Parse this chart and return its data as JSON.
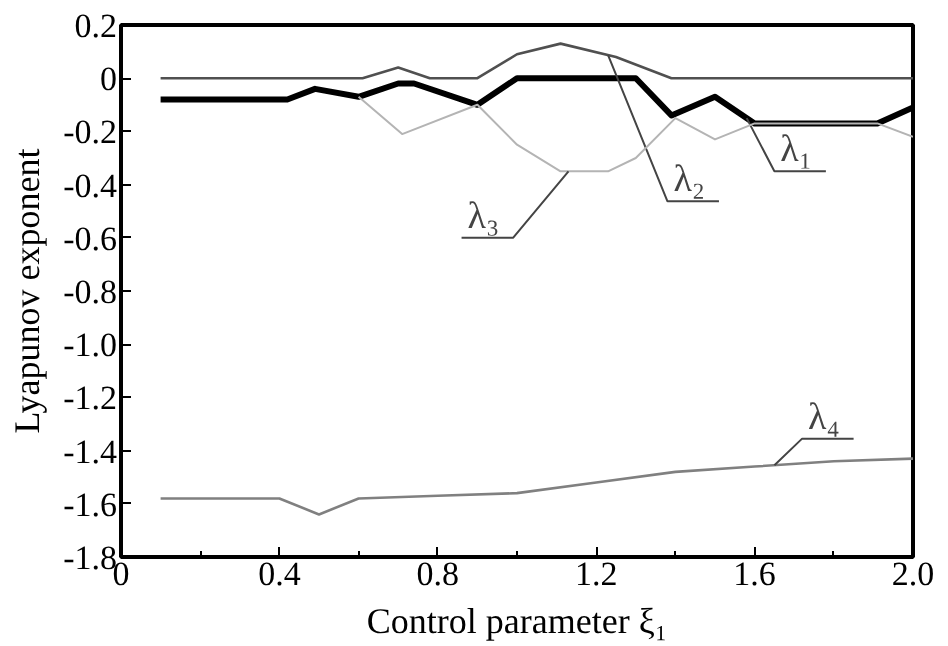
{
  "chart_data": {
    "type": "line",
    "xlabel": "Control parameter ξ₁",
    "ylabel": "Lyapunov exponent",
    "xlim": [
      0,
      2.0
    ],
    "ylim": [
      -1.8,
      0.2
    ],
    "xticks": [
      0,
      0.4,
      0.8,
      1.2,
      1.6,
      {
        "value": 2.0,
        "label": "2.0"
      }
    ],
    "yticks": [
      0.2,
      0,
      -0.2,
      -0.4,
      -0.6,
      -0.8,
      {
        "value": -1.0,
        "label": "-1.0"
      },
      -1.2,
      -1.4,
      -1.6,
      -1.8
    ],
    "grid": false,
    "marker": "none",
    "line_style": "solid",
    "series": [
      {
        "name": "λ₁",
        "color": "#000000",
        "x": [
          0.1,
          0.42,
          0.49,
          0.6,
          0.7,
          0.74,
          0.9,
          1.0,
          1.3,
          1.39,
          1.5,
          1.6,
          1.91,
          2.0
        ],
        "values": [
          -0.08,
          -0.08,
          -0.04,
          -0.07,
          -0.02,
          -0.02,
          -0.1,
          0,
          0,
          -0.14,
          -0.07,
          -0.17,
          -0.17,
          -0.11
        ]
      },
      {
        "name": "λ₂",
        "color": "#505050",
        "x": [
          0.1,
          0.61,
          0.7,
          0.78,
          0.9,
          1.0,
          1.11,
          1.25,
          1.39,
          2.0
        ],
        "values": [
          0,
          0,
          0.04,
          0,
          0,
          0.09,
          0.13,
          0.08,
          0,
          0
        ]
      },
      {
        "name": "λ₃",
        "color": "#b4b4b4",
        "x": [
          0.6,
          0.71,
          0.9,
          1.0,
          1.11,
          1.23,
          1.3,
          1.4,
          1.5,
          1.6,
          1.91,
          2.0
        ],
        "values": [
          -0.07,
          -0.21,
          -0.1,
          -0.25,
          -0.35,
          -0.35,
          -0.3,
          -0.15,
          -0.23,
          -0.17,
          -0.17,
          -0.22
        ]
      },
      {
        "name": "λ₄",
        "color": "#808080",
        "x": [
          0.1,
          0.4,
          0.5,
          0.6,
          0.8,
          1.0,
          1.2,
          1.4,
          1.6,
          1.8,
          2.0
        ],
        "values": [
          -1.58,
          -1.58,
          -1.64,
          -1.58,
          -1.57,
          -1.56,
          -1.52,
          -1.48,
          -1.46,
          -1.44,
          -1.43
        ]
      }
    ]
  }
}
